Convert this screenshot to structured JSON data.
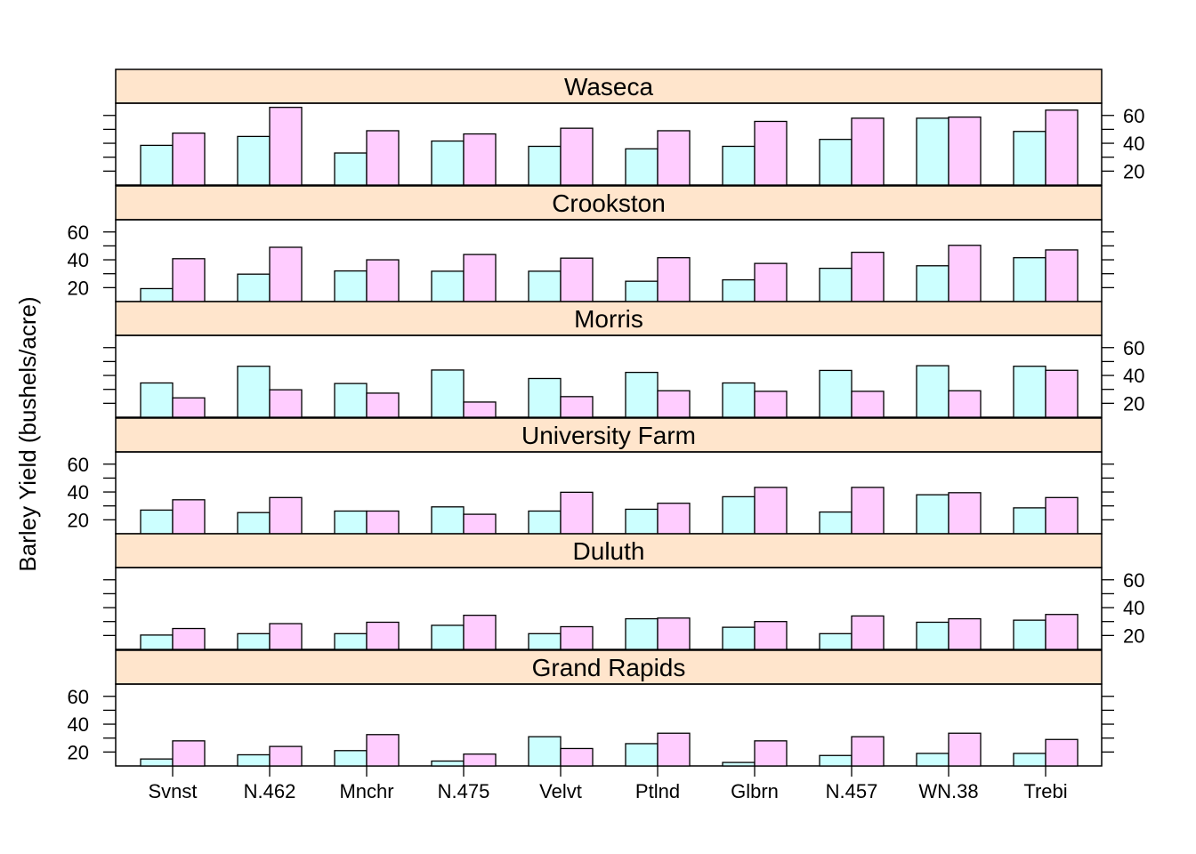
{
  "chart_data": {
    "type": "bar",
    "ylabel": "Barley Yield (bushels/acre)",
    "xlabel": "",
    "categories": [
      "Svnst",
      "N.462",
      "Mnchr",
      "N.475",
      "Velvt",
      "Ptlnd",
      "Glbrn",
      "N.457",
      "WN.38",
      "Trebi"
    ],
    "yticks": [
      20,
      40,
      60
    ],
    "ylim": [
      10,
      68
    ],
    "panels": [
      {
        "site": "Waseca",
        "series": [
          {
            "values": [
              38.5,
              44.9,
              33.0,
              41.6,
              37.8,
              36.0,
              37.8,
              42.8,
              58.0,
              48.5
            ]
          },
          {
            "values": [
              47.3,
              65.8,
              49.0,
              46.7,
              50.8,
              49.0,
              55.7,
              58.0,
              58.8,
              63.8
            ]
          }
        ]
      },
      {
        "site": "Crookston",
        "series": [
          {
            "values": [
              19.3,
              29.7,
              32.0,
              31.8,
              31.8,
              24.6,
              25.6,
              33.9,
              35.7,
              41.5
            ]
          },
          {
            "values": [
              40.8,
              49.0,
              40.0,
              43.8,
              41.2,
              41.5,
              37.4,
              45.4,
              50.4,
              47.1
            ]
          }
        ]
      },
      {
        "site": "Morris",
        "series": [
          {
            "values": [
              34.6,
              46.6,
              34.2,
              43.9,
              37.8,
              42.2,
              34.6,
              43.6,
              47.0,
              46.6
            ]
          },
          {
            "values": [
              23.9,
              29.7,
              27.3,
              20.9,
              24.8,
              29.0,
              28.6,
              28.6,
              29.0,
              43.7
            ]
          }
        ]
      },
      {
        "site": "University Farm",
        "series": [
          {
            "values": [
              27.0,
              25.2,
              26.3,
              29.3,
              26.3,
              27.6,
              36.6,
              25.6,
              38.0,
              28.6
            ]
          },
          {
            "values": [
              34.4,
              36.0,
              26.3,
              24.0,
              39.8,
              31.9,
              43.3,
              43.3,
              39.5,
              36.0
            ]
          }
        ]
      },
      {
        "site": "Duluth",
        "series": [
          {
            "values": [
              20.3,
              21.3,
              21.3,
              27.3,
              21.3,
              32.0,
              25.9,
              21.3,
              29.5,
              31.0
            ]
          },
          {
            "values": [
              25.0,
              28.5,
              29.5,
              34.5,
              26.3,
              32.5,
              30.0,
              34.0,
              32.0,
              35.1
            ]
          }
        ]
      },
      {
        "site": "Grand Rapids",
        "series": [
          {
            "values": [
              15.0,
              18.0,
              21.0,
              13.5,
              31.0,
              26.0,
              12.5,
              17.5,
              19.0,
              19.0
            ]
          },
          {
            "values": [
              28.0,
              24.0,
              32.5,
              18.5,
              22.5,
              33.5,
              28.0,
              31.0,
              33.5,
              29.0
            ]
          }
        ]
      }
    ],
    "colors": {
      "series_0": "#ccffff",
      "series_1": "#ffccff",
      "strip": "#ffe5cc",
      "border": "#000000"
    },
    "legend": "none",
    "grid": false
  }
}
